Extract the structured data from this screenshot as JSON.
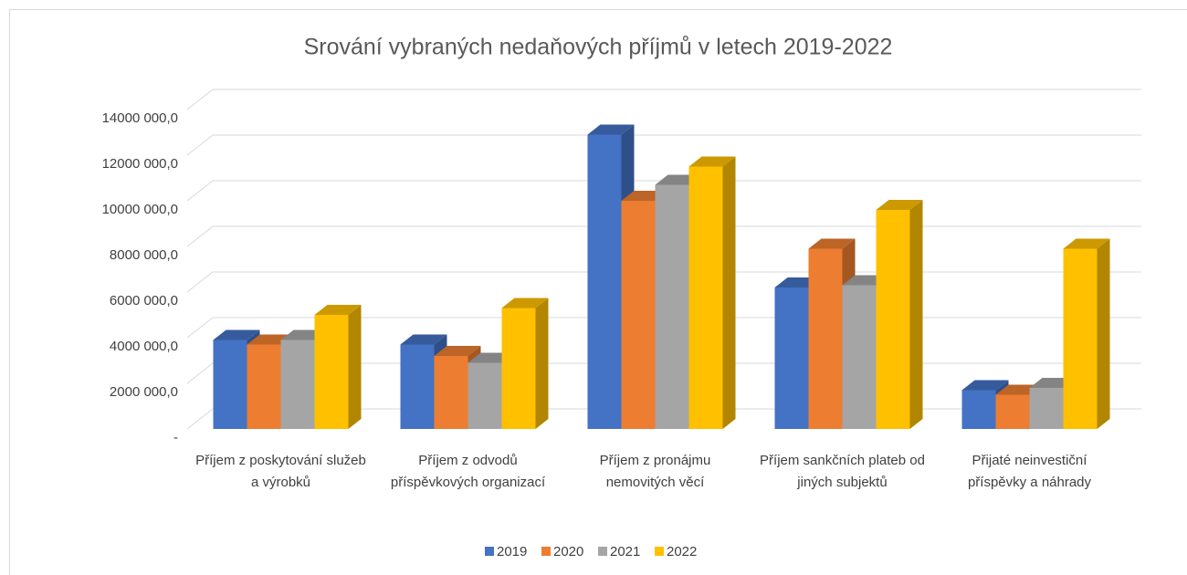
{
  "chart_data": {
    "type": "bar3d",
    "title": "Srování vybraných nedaňových příjmů v letech 2019-2022",
    "categories": [
      "Příjem z poskytování služeb a výrobků",
      "Příjem z odvodů příspěvkových organizací",
      "Příjem z pronájmu nemovitých věcí",
      "Příjem sankčních plateb od jiných subjektů",
      "Přijaté neinvestiční příspěvky a náhrady"
    ],
    "series": [
      {
        "name": "2019",
        "color": "#4472c4",
        "values": [
          3900000,
          3700000,
          12900000,
          6200000,
          1700000
        ]
      },
      {
        "name": "2020",
        "color": "#ed7d31",
        "values": [
          3700000,
          3200000,
          10000000,
          7900000,
          1500000
        ]
      },
      {
        "name": "2021",
        "color": "#a5a5a5",
        "values": [
          3900000,
          2900000,
          10700000,
          6300000,
          1800000
        ]
      },
      {
        "name": "2022",
        "color": "#ffc000",
        "values": [
          5000000,
          5300000,
          11500000,
          9600000,
          7900000
        ]
      }
    ],
    "ylim": [
      0,
      14000000
    ],
    "yticks": [
      {
        "value": 0,
        "label": "-"
      },
      {
        "value": 2000000,
        "label": "2000 000,0"
      },
      {
        "value": 4000000,
        "label": "4000 000,0"
      },
      {
        "value": 6000000,
        "label": "6000 000,0"
      },
      {
        "value": 8000000,
        "label": "8000 000,0"
      },
      {
        "value": 10000000,
        "label": "10000 000,0"
      },
      {
        "value": 12000000,
        "label": "12000 000,0"
      },
      {
        "value": 14000000,
        "label": "14000 000,0"
      }
    ],
    "grid": true,
    "legend": "bottom"
  }
}
